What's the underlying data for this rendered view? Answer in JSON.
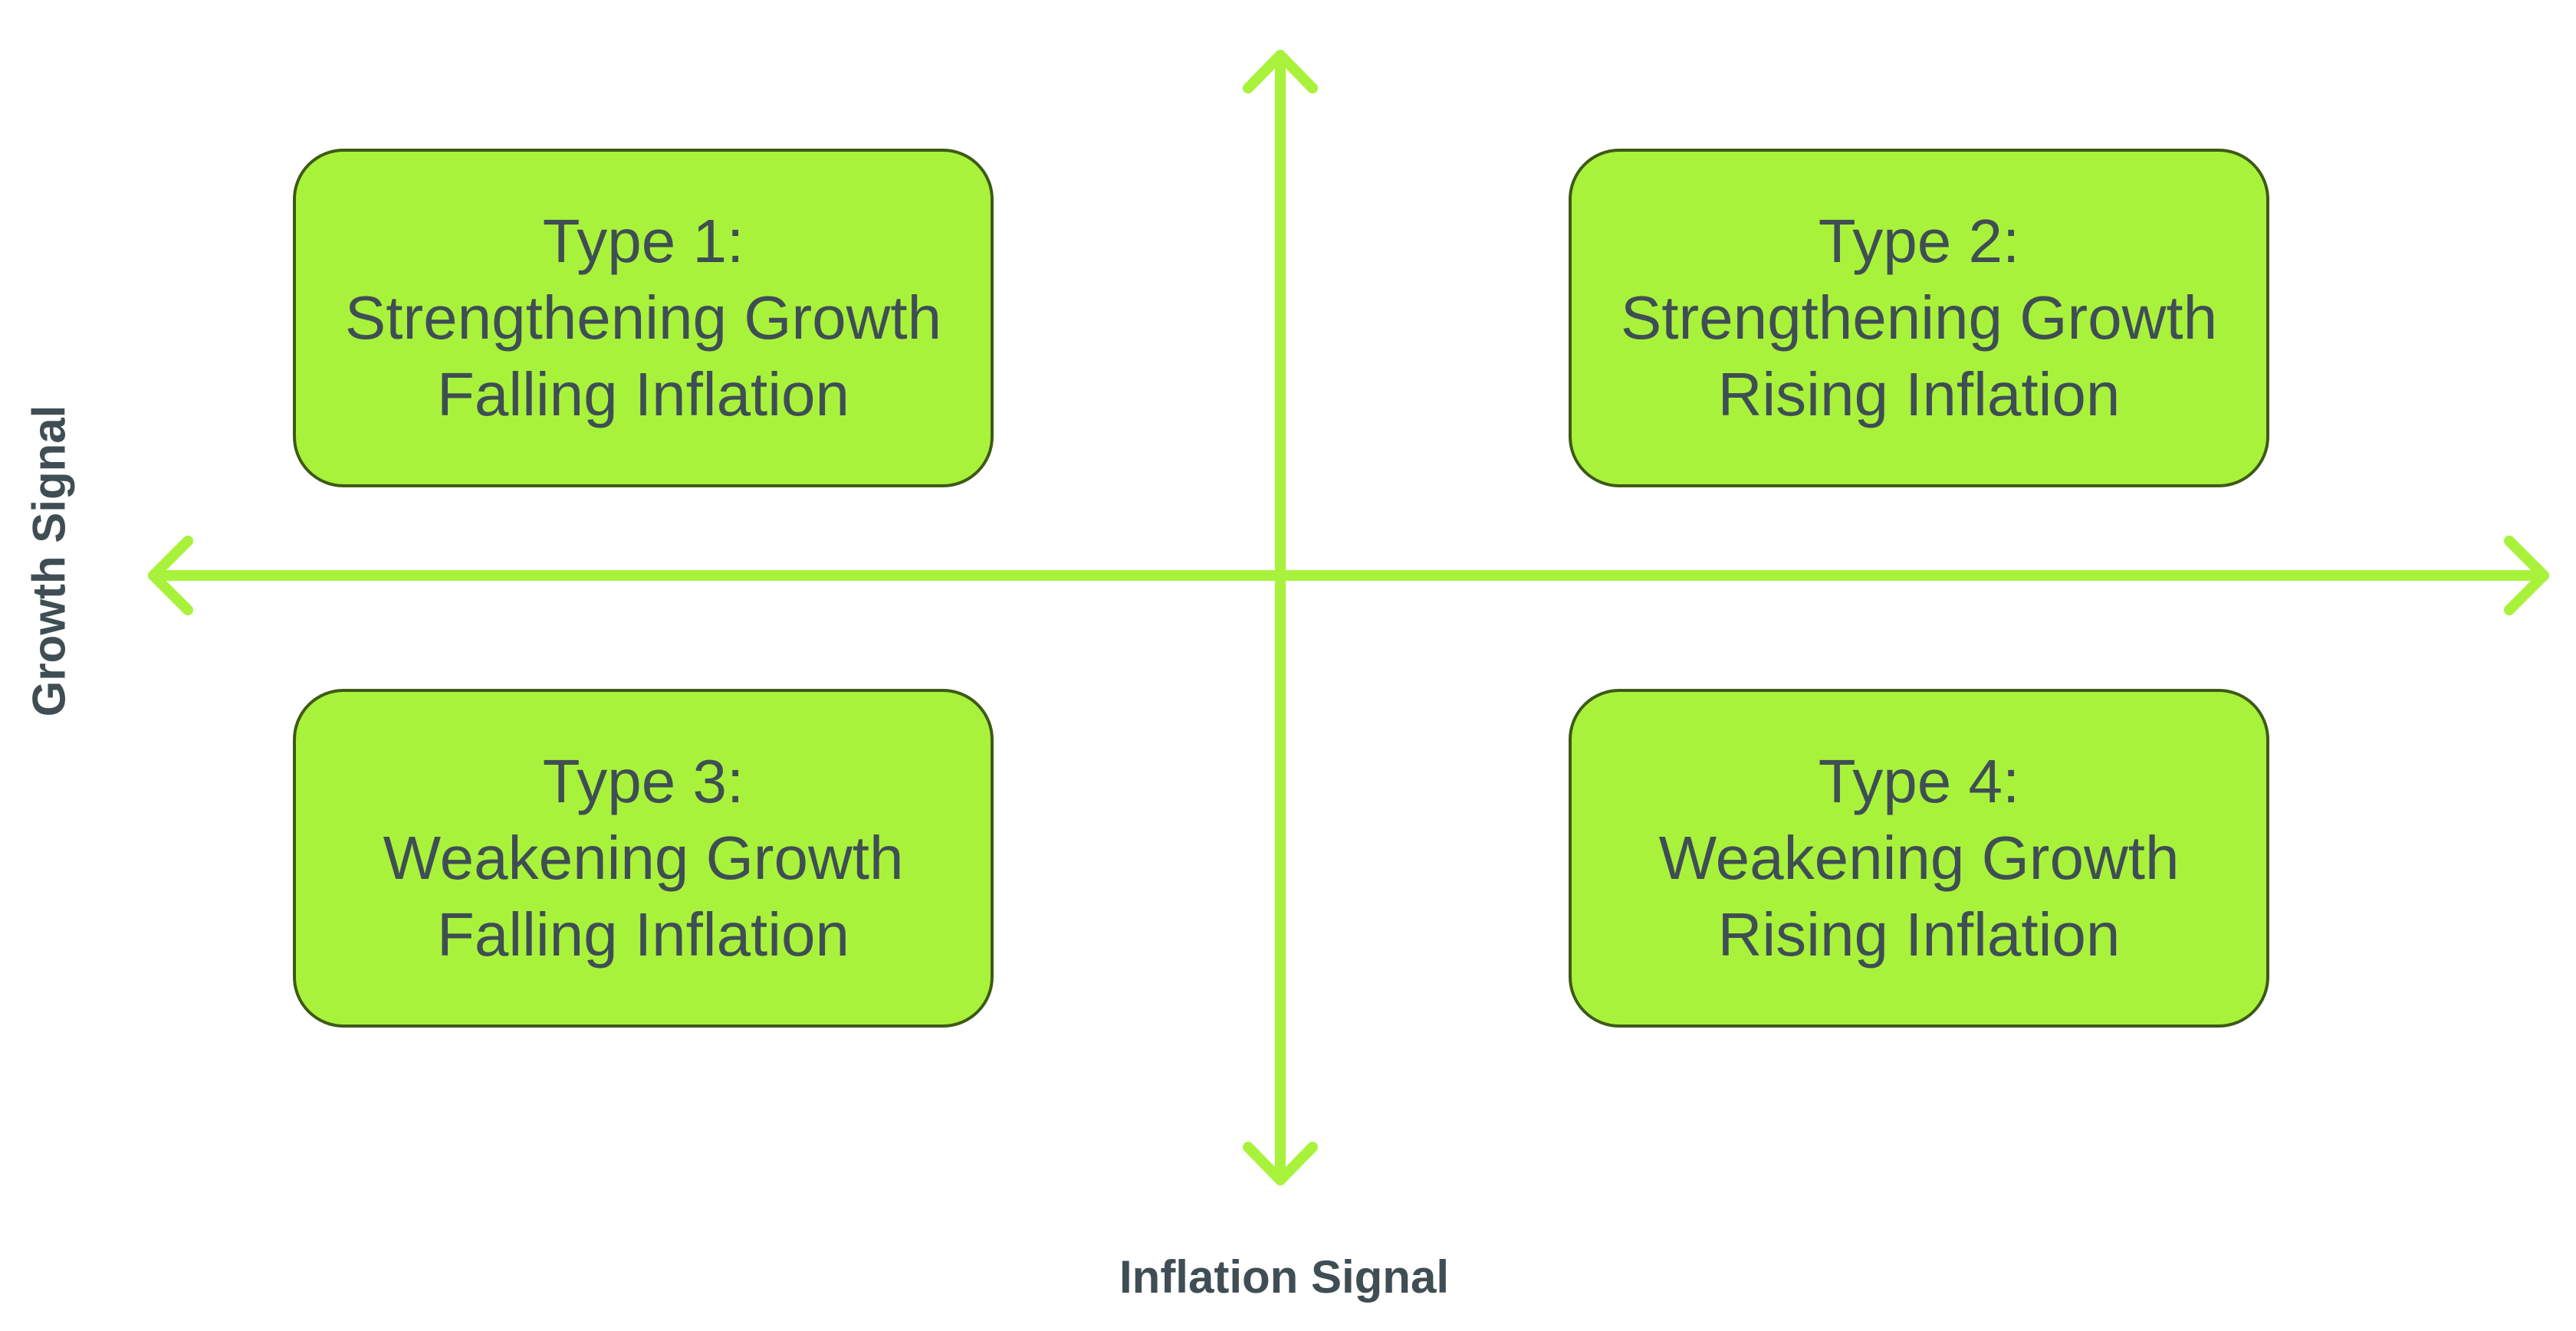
{
  "colors": {
    "accent": "#a9f23b",
    "box_border": "#3e5a16",
    "text": "#3f4e54"
  },
  "axes": {
    "x_label": "Inflation Signal",
    "y_label": "Growth Signal"
  },
  "quadrants": [
    {
      "line1": "Type 1:",
      "line2": "Strengthening Growth",
      "line3": "Falling Inflation"
    },
    {
      "line1": "Type 2:",
      "line2": "Strengthening Growth",
      "line3": "Rising Inflation"
    },
    {
      "line1": "Type 3:",
      "line2": "Weakening Growth",
      "line3": "Falling Inflation"
    },
    {
      "line1": "Type 4:",
      "line2": "Weakening Growth",
      "line3": "Rising Inflation"
    }
  ]
}
